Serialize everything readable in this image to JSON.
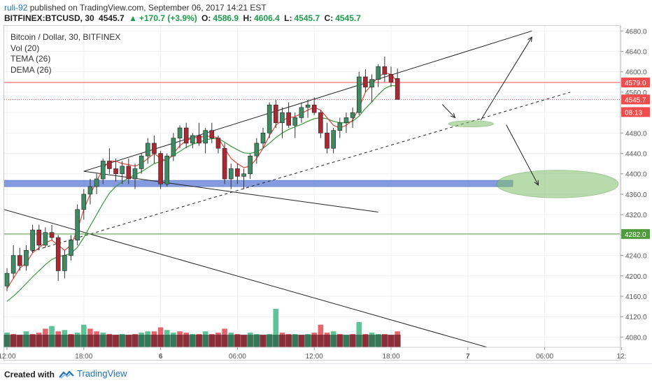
{
  "header": {
    "user": "ruli-92",
    "published": "published on TradingView.com, September 06, 2017 14:21 EST",
    "symbol": "BITFINEX:BTCUSD, 30",
    "last": "4545.7",
    "change": "+170.7 (+3.9%)",
    "o_label": "O:",
    "o": "4586.9",
    "h_label": "H:",
    "h": "4606.4",
    "l_label": "L:",
    "l": "4545.7",
    "c_label": "C:",
    "c": "4545.7"
  },
  "legend": {
    "title": "Bitcoin / Dollar, 30, BITFINEX",
    "items": [
      "Vol (20)",
      "TEMA (26)",
      "DEMA (26)"
    ]
  },
  "footer": {
    "created": "Created with",
    "brand": "TradingView"
  },
  "colors": {
    "up": "#3d8a63",
    "down": "#a82834",
    "vol_up": "#4dbd8b",
    "vol_down": "#e2545f",
    "tema": "#e3453b",
    "dema": "#3c9a3e",
    "zone": "#5b7bd5",
    "ellipse": "#7fbf6a",
    "price_red": "#f24b4b",
    "price_green": "#4f9c3a"
  },
  "chart_data": {
    "type": "candlestick",
    "title": "Bitcoin / Dollar, 30, BITFINEX",
    "ylim": [
      4060,
      4690
    ],
    "y_ticks": [
      4080,
      4120,
      4160,
      4200,
      4240,
      4280,
      4320,
      4360,
      4400,
      4440,
      4480,
      4520,
      4560,
      4600,
      4640,
      4680
    ],
    "x_ticks": [
      {
        "label": "12:00",
        "idx": 0
      },
      {
        "label": "18:00",
        "idx": 12
      },
      {
        "label": "6",
        "idx": 24
      },
      {
        "label": "06:00",
        "idx": 36
      },
      {
        "label": "12:00",
        "idx": 48
      },
      {
        "label": "18:00",
        "idx": 60
      },
      {
        "label": "7",
        "idx": 72
      },
      {
        "label": "06:00",
        "idx": 84
      },
      {
        "label": "12:",
        "idx": 96
      }
    ],
    "n_slots": 96,
    "candles": [
      [
        4180,
        4215,
        4170,
        4205
      ],
      [
        4205,
        4260,
        4195,
        4240
      ],
      [
        4240,
        4255,
        4210,
        4220
      ],
      [
        4220,
        4260,
        4210,
        4250
      ],
      [
        4250,
        4300,
        4245,
        4290
      ],
      [
        4290,
        4300,
        4250,
        4260
      ],
      [
        4260,
        4295,
        4255,
        4285
      ],
      [
        4285,
        4300,
        4270,
        4275
      ],
      [
        4275,
        4280,
        4190,
        4210
      ],
      [
        4210,
        4250,
        4195,
        4240
      ],
      [
        4240,
        4280,
        4230,
        4270
      ],
      [
        4270,
        4340,
        4260,
        4330
      ],
      [
        4330,
        4370,
        4310,
        4360
      ],
      [
        4360,
        4390,
        4340,
        4375
      ],
      [
        4375,
        4400,
        4360,
        4390
      ],
      [
        4390,
        4430,
        4380,
        4425
      ],
      [
        4425,
        4450,
        4400,
        4410
      ],
      [
        4410,
        4430,
        4385,
        4400
      ],
      [
        4400,
        4425,
        4380,
        4415
      ],
      [
        4415,
        4430,
        4380,
        4390
      ],
      [
        4390,
        4420,
        4370,
        4410
      ],
      [
        4410,
        4440,
        4400,
        4435
      ],
      [
        4435,
        4470,
        4420,
        4460
      ],
      [
        4460,
        4475,
        4420,
        4440
      ],
      [
        4440,
        4445,
        4370,
        4380
      ],
      [
        4380,
        4440,
        4375,
        4435
      ],
      [
        4435,
        4480,
        4425,
        4470
      ],
      [
        4470,
        4495,
        4450,
        4490
      ],
      [
        4490,
        4500,
        4450,
        4460
      ],
      [
        4460,
        4480,
        4450,
        4475
      ],
      [
        4475,
        4500,
        4455,
        4460
      ],
      [
        4460,
        4490,
        4440,
        4485
      ],
      [
        4485,
        4500,
        4460,
        4470
      ],
      [
        4470,
        4475,
        4440,
        4450
      ],
      [
        4450,
        4460,
        4380,
        4390
      ],
      [
        4390,
        4420,
        4370,
        4410
      ],
      [
        4410,
        4420,
        4380,
        4395
      ],
      [
        4395,
        4410,
        4370,
        4400
      ],
      [
        4400,
        4440,
        4390,
        4435
      ],
      [
        4435,
        4470,
        4420,
        4460
      ],
      [
        4460,
        4490,
        4450,
        4480
      ],
      [
        4480,
        4540,
        4470,
        4535
      ],
      [
        4535,
        4545,
        4490,
        4500
      ],
      [
        4500,
        4530,
        4470,
        4520
      ],
      [
        4520,
        4540,
        4490,
        4495
      ],
      [
        4495,
        4520,
        4470,
        4510
      ],
      [
        4510,
        4540,
        4500,
        4530
      ],
      [
        4530,
        4545,
        4510,
        4535
      ],
      [
        4535,
        4550,
        4515,
        4520
      ],
      [
        4520,
        4525,
        4470,
        4480
      ],
      [
        4480,
        4500,
        4440,
        4450
      ],
      [
        4450,
        4490,
        4440,
        4485
      ],
      [
        4485,
        4510,
        4470,
        4500
      ],
      [
        4500,
        4520,
        4480,
        4510
      ],
      [
        4510,
        4530,
        4490,
        4520
      ],
      [
        4520,
        4600,
        4515,
        4590
      ],
      [
        4590,
        4605,
        4560,
        4570
      ],
      [
        4570,
        4595,
        4540,
        4585
      ],
      [
        4585,
        4615,
        4570,
        4610
      ],
      [
        4610,
        4630,
        4580,
        4595
      ],
      [
        4595,
        4610,
        4570,
        4580
      ],
      [
        4586.9,
        4606.4,
        4545.7,
        4545.7
      ]
    ],
    "tema": [
      4175,
      4195,
      4215,
      4225,
      4245,
      4255,
      4265,
      4270,
      4260,
      4250,
      4260,
      4290,
      4330,
      4360,
      4385,
      4410,
      4425,
      4425,
      4420,
      4418,
      4415,
      4420,
      4430,
      4440,
      4430,
      4425,
      4440,
      4455,
      4465,
      4470,
      4472,
      4473,
      4474,
      4470,
      4450,
      4430,
      4420,
      4412,
      4415,
      4430,
      4450,
      4475,
      4495,
      4505,
      4510,
      4512,
      4518,
      4525,
      4530,
      4525,
      4510,
      4495,
      4490,
      4495,
      4505,
      4530,
      4560,
      4575,
      4590,
      4598,
      4595,
      4580
    ],
    "dema": [
      4150,
      4160,
      4172,
      4185,
      4198,
      4210,
      4222,
      4232,
      4238,
      4240,
      4244,
      4256,
      4275,
      4298,
      4320,
      4342,
      4362,
      4375,
      4384,
      4392,
      4398,
      4404,
      4412,
      4420,
      4424,
      4428,
      4436,
      4444,
      4452,
      4458,
      4462,
      4466,
      4469,
      4469,
      4462,
      4454,
      4447,
      4441,
      4440,
      4443,
      4450,
      4460,
      4471,
      4480,
      4487,
      4492,
      4497,
      4503,
      4508,
      4510,
      4508,
      4503,
      4500,
      4500,
      4503,
      4513,
      4528,
      4541,
      4555,
      4567,
      4573,
      4572
    ],
    "volume": [
      [
        0.55,
        "u"
      ],
      [
        0.5,
        "d"
      ],
      [
        0.45,
        "d"
      ],
      [
        0.6,
        "u"
      ],
      [
        0.5,
        "d"
      ],
      [
        0.55,
        "d"
      ],
      [
        0.7,
        "d"
      ],
      [
        0.8,
        "u"
      ],
      [
        0.6,
        "d"
      ],
      [
        0.65,
        "u"
      ],
      [
        0.5,
        "d"
      ],
      [
        0.55,
        "u"
      ],
      [
        0.85,
        "u"
      ],
      [
        0.7,
        "d"
      ],
      [
        0.6,
        "d"
      ],
      [
        0.55,
        "u"
      ],
      [
        0.5,
        "d"
      ],
      [
        0.45,
        "d"
      ],
      [
        0.5,
        "u"
      ],
      [
        0.45,
        "d"
      ],
      [
        0.5,
        "d"
      ],
      [
        0.55,
        "u"
      ],
      [
        0.6,
        "u"
      ],
      [
        0.6,
        "d"
      ],
      [
        0.75,
        "d"
      ],
      [
        0.65,
        "u"
      ],
      [
        0.55,
        "u"
      ],
      [
        0.6,
        "d"
      ],
      [
        0.55,
        "d"
      ],
      [
        0.5,
        "u"
      ],
      [
        0.5,
        "d"
      ],
      [
        0.6,
        "u"
      ],
      [
        0.5,
        "d"
      ],
      [
        0.55,
        "d"
      ],
      [
        0.7,
        "d"
      ],
      [
        0.55,
        "u"
      ],
      [
        0.5,
        "d"
      ],
      [
        0.45,
        "d"
      ],
      [
        0.55,
        "u"
      ],
      [
        0.5,
        "u"
      ],
      [
        0.45,
        "d"
      ],
      [
        0.5,
        "u"
      ],
      [
        1.45,
        "u"
      ],
      [
        0.55,
        "d"
      ],
      [
        0.5,
        "d"
      ],
      [
        0.5,
        "u"
      ],
      [
        0.45,
        "d"
      ],
      [
        0.5,
        "u"
      ],
      [
        0.55,
        "d"
      ],
      [
        0.85,
        "d"
      ],
      [
        0.55,
        "d"
      ],
      [
        0.6,
        "u"
      ],
      [
        0.5,
        "d"
      ],
      [
        0.45,
        "u"
      ],
      [
        0.5,
        "d"
      ],
      [
        0.95,
        "u"
      ],
      [
        0.5,
        "d"
      ],
      [
        0.55,
        "u"
      ],
      [
        0.5,
        "u"
      ],
      [
        0.5,
        "d"
      ],
      [
        0.45,
        "d"
      ],
      [
        0.6,
        "d"
      ]
    ],
    "price_labels": [
      {
        "value": "4579.0",
        "y": 4579,
        "color": "#f24b4b",
        "line": "solid"
      },
      {
        "value": "4545.7",
        "y": 4545.7,
        "color": "#f24b4b",
        "line": "dotted"
      },
      {
        "value": "08:13",
        "y": 4521,
        "color": "#f24b4b",
        "line": "none"
      },
      {
        "value": "4282.0",
        "y": 4282,
        "color": "#4f9c3a",
        "line": "solid"
      }
    ],
    "drawings": {
      "zone": {
        "y_top": 4387,
        "y_bot": 4375,
        "x0": -1,
        "x1": 79
      },
      "ellipses": [
        {
          "cx": 72.5,
          "cy": 4498,
          "rx": 3.5,
          "ry": 6
        },
        {
          "cx": 86,
          "cy": 4380,
          "rx": 9.5,
          "ry": 27
        }
      ],
      "upper_channel": [
        [
          12,
          4405
        ],
        [
          82,
          4680
        ]
      ],
      "lower_channel_dashed": [
        [
          3,
          4245
        ],
        [
          88,
          4560
        ]
      ],
      "descending_top": [
        [
          12,
          4405
        ],
        [
          58,
          4325
        ]
      ],
      "descending_bottom": [
        [
          -1,
          4332
        ],
        [
          75,
          4060
        ]
      ],
      "arrows": [
        {
          "from": [
            74,
            4505
          ],
          "to": [
            82,
            4668
          ]
        },
        {
          "from": [
            78,
            4496
          ],
          "to": [
            83,
            4378
          ]
        },
        {
          "from": [
            68,
            4536
          ],
          "to": [
            70,
            4510
          ]
        }
      ]
    }
  }
}
